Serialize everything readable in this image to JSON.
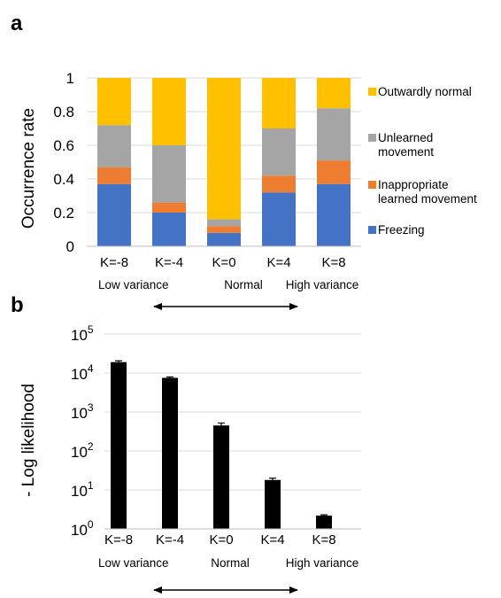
{
  "panel_a_label": "a",
  "panel_b_label": "b",
  "chart_data": [
    {
      "type": "bar",
      "stacked": true,
      "panel": "a",
      "ylabel": "Occurrence rate",
      "ylim": [
        0,
        1
      ],
      "yticks": [
        "0",
        "0.2",
        "0.4",
        "0.6",
        "0.8",
        "1"
      ],
      "categories": [
        "K=-8",
        "K=-4",
        "K=0",
        "K=4",
        "K=8"
      ],
      "series": [
        {
          "name": "Freezing",
          "color": "#4472C4",
          "values": [
            0.37,
            0.2,
            0.08,
            0.32,
            0.37
          ]
        },
        {
          "name": "Inappropriate learned movement",
          "color": "#ED7D31",
          "values": [
            0.1,
            0.06,
            0.04,
            0.1,
            0.14
          ]
        },
        {
          "name": "Unlearned movement",
          "color": "#A5A5A5",
          "values": [
            0.25,
            0.34,
            0.04,
            0.28,
            0.31
          ]
        },
        {
          "name": "Outwardly normal",
          "color": "#FFC000",
          "values": [
            0.28,
            0.4,
            0.84,
            0.3,
            0.18
          ]
        }
      ],
      "legend": [
        "Outwardly normal",
        "Unlearned movement",
        "Inappropriate learned movement",
        "Freezing"
      ],
      "sublabels": [
        "Low variance",
        "Normal",
        "High variance"
      ],
      "legend_position": "right",
      "grid": true
    },
    {
      "type": "bar",
      "panel": "b",
      "ylabel": "- Log likelihood",
      "yscale": "log",
      "ylim": [
        1,
        100000
      ],
      "ytick_base": "10",
      "ytick_exponents": [
        "0",
        "1",
        "2",
        "3",
        "4",
        "5"
      ],
      "categories": [
        "K=-8",
        "K=-4",
        "K=0",
        "K=4",
        "K=8"
      ],
      "values": [
        19000,
        7500,
        450,
        18,
        2.2
      ],
      "errors": [
        1500,
        400,
        70,
        2,
        0.1
      ],
      "color": "#000000",
      "sublabels": [
        "Low variance",
        "Normal",
        "High variance"
      ],
      "grid": true
    }
  ]
}
